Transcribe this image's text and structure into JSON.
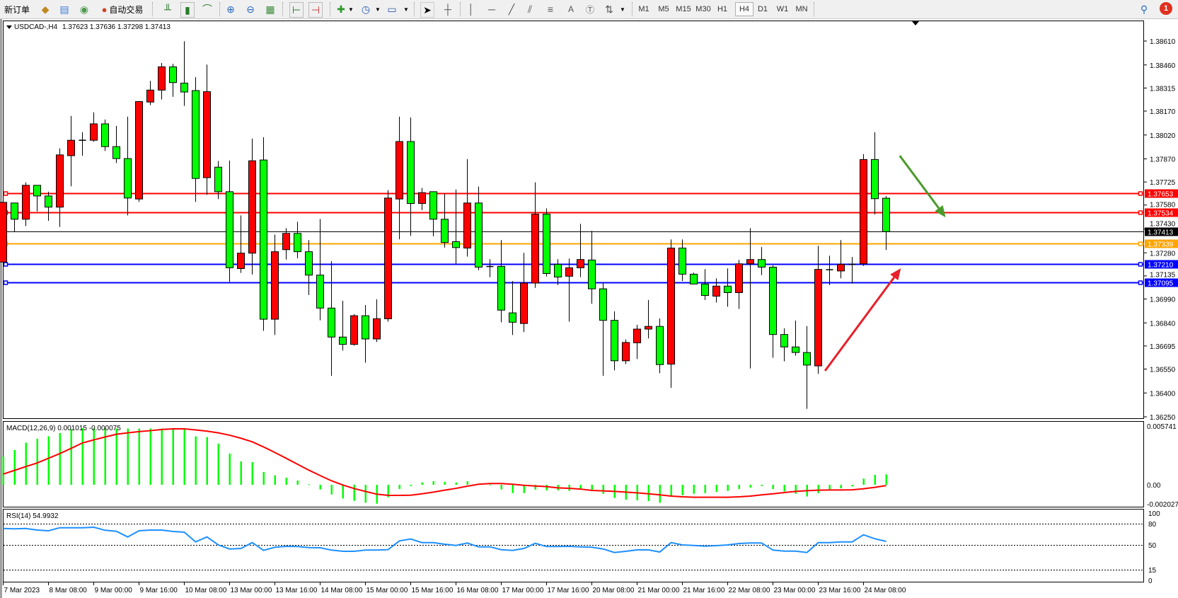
{
  "toolbar": {
    "new_order": "新订单",
    "auto_trading": "自动交易",
    "timeframes": [
      "M1",
      "M5",
      "M15",
      "M30",
      "H1",
      "H4",
      "D1",
      "W1",
      "MN"
    ],
    "active_timeframe": "H4",
    "notification_count": "1"
  },
  "chart": {
    "symbol": "USDCAD-,H4",
    "ohlc": "1.37623 1.37636 1.37298 1.37413"
  },
  "indicators": {
    "macd_label": "MACD(12,26,9) 0.001015 -0.000075",
    "rsi_label": "RSI(14) 54.9932"
  },
  "chart_data": {
    "type": "candlestick",
    "colors": {
      "bull": "#FF0000",
      "bear": "#00FF00",
      "macd_hist": "#00FF00",
      "macd_signal": "#FF0000",
      "rsi": "#1E90FF"
    },
    "x_labels": [
      "7 Mar 2023",
      "8 Mar 08:00",
      "9 Mar 00:00",
      "9 Mar 16:00",
      "10 Mar 08:00",
      "13 Mar 00:00",
      "13 Mar 16:00",
      "14 Mar 08:00",
      "15 Mar 00:00",
      "15 Mar 16:00",
      "16 Mar 08:00",
      "17 Mar 00:00",
      "17 Mar 16:00",
      "20 Mar 08:00",
      "21 Mar 00:00",
      "21 Mar 16:00",
      "22 Mar 08:00",
      "23 Mar 00:00",
      "23 Mar 16:00",
      "24 Mar 08:00"
    ],
    "price_ticks": [
      "1.38610",
      "1.38460",
      "1.38315",
      "1.38170",
      "1.38020",
      "1.37870",
      "1.37725",
      "1.37580",
      "1.37430",
      "1.37280",
      "1.37135",
      "1.36990",
      "1.36840",
      "1.36695",
      "1.36550",
      "1.36400",
      "1.36250"
    ],
    "levels": [
      {
        "price": 1.37653,
        "label": "1.37653",
        "color": "#FF0000"
      },
      {
        "price": 1.37534,
        "label": "1.37534",
        "color": "#FF0000"
      },
      {
        "price": 1.37339,
        "label": "1.37339",
        "color": "#FFA500"
      },
      {
        "price": 1.3721,
        "label": "1.37210",
        "color": "#0000FF"
      },
      {
        "price": 1.37095,
        "label": "1.37095",
        "color": "#0000FF"
      }
    ],
    "bid": {
      "price": 1.37413,
      "label": "1.37413",
      "color": "#000000"
    },
    "candles_ohlc": [
      [
        1.37222,
        1.37604,
        1.37127,
        1.37597
      ],
      [
        1.37593,
        1.37593,
        1.37413,
        1.37491
      ],
      [
        1.37491,
        1.37723,
        1.37448,
        1.37704
      ],
      [
        1.37704,
        1.37704,
        1.3754,
        1.37637
      ],
      [
        1.37637,
        1.37664,
        1.37481,
        1.37567
      ],
      [
        1.37567,
        1.37936,
        1.37442,
        1.37895
      ],
      [
        1.3789,
        1.3814,
        1.37698,
        1.37987
      ],
      [
        1.37987,
        1.38038,
        1.3789,
        1.37987
      ],
      [
        1.37987,
        1.38162,
        1.37977,
        1.3809
      ],
      [
        1.3809,
        1.38117,
        1.3792,
        1.37947
      ],
      [
        1.37947,
        1.38077,
        1.37844,
        1.37872
      ],
      [
        1.37872,
        1.38135,
        1.37515,
        1.37624
      ],
      [
        1.37618,
        1.3823,
        1.376,
        1.3823
      ],
      [
        1.38227,
        1.3836,
        1.38208,
        1.38302
      ],
      [
        1.38302,
        1.38472,
        1.38243,
        1.38448
      ],
      [
        1.38448,
        1.38467,
        1.3826,
        1.38349
      ],
      [
        1.38346,
        1.38609,
        1.38203,
        1.3829
      ],
      [
        1.38299,
        1.38383,
        1.376,
        1.37747
      ],
      [
        1.37752,
        1.38462,
        1.37645,
        1.38292
      ],
      [
        1.37818,
        1.37857,
        1.37618,
        1.37664
      ],
      [
        1.37664,
        1.3786,
        1.37098,
        1.37186
      ],
      [
        1.37181,
        1.37515,
        1.37154,
        1.37278
      ],
      [
        1.37278,
        1.37998,
        1.37144,
        1.37858
      ],
      [
        1.37863,
        1.38006,
        1.3679,
        1.36863
      ],
      [
        1.36863,
        1.37395,
        1.36764,
        1.37287
      ],
      [
        1.373,
        1.37435,
        1.37238,
        1.37402
      ],
      [
        1.37402,
        1.37475,
        1.37246,
        1.37287
      ],
      [
        1.37287,
        1.3736,
        1.37015,
        1.3714
      ],
      [
        1.3714,
        1.37492,
        1.36856,
        1.36933
      ],
      [
        1.36933,
        1.37227,
        1.36507,
        1.36751
      ],
      [
        1.36751,
        1.36979,
        1.36666,
        1.36705
      ],
      [
        1.36705,
        1.36895,
        1.36697,
        1.36885
      ],
      [
        1.36885,
        1.36952,
        1.3659,
        1.36739
      ],
      [
        1.36739,
        1.36988,
        1.3672,
        1.36866
      ],
      [
        1.36866,
        1.37674,
        1.36848,
        1.37624
      ],
      [
        1.37618,
        1.38135,
        1.37365,
        1.37979
      ],
      [
        1.37979,
        1.3813,
        1.37386,
        1.3759
      ],
      [
        1.3759,
        1.37688,
        1.37548,
        1.37658
      ],
      [
        1.37664,
        1.37664,
        1.37384,
        1.37491
      ],
      [
        1.37491,
        1.37651,
        1.37313,
        1.37345
      ],
      [
        1.3735,
        1.37678,
        1.37211,
        1.37313
      ],
      [
        1.3731,
        1.37869,
        1.37256,
        1.37593
      ],
      [
        1.37593,
        1.37696,
        1.37171,
        1.3719
      ],
      [
        1.37194,
        1.3724,
        1.37127,
        1.37194
      ],
      [
        1.37195,
        1.3736,
        1.36844,
        1.3692
      ],
      [
        1.36903,
        1.37103,
        1.36764,
        1.36844
      ],
      [
        1.36836,
        1.3728,
        1.36782,
        1.3709
      ],
      [
        1.3709,
        1.37723,
        1.3706,
        1.37523
      ],
      [
        1.37523,
        1.37559,
        1.37131,
        1.3715
      ],
      [
        1.37208,
        1.3724,
        1.37077,
        1.37128
      ],
      [
        1.37133,
        1.37244,
        1.36848,
        1.37186
      ],
      [
        1.37186,
        1.37462,
        1.37127,
        1.37238
      ],
      [
        1.37235,
        1.37418,
        1.3696,
        1.37054
      ],
      [
        1.37054,
        1.3709,
        1.36507,
        1.36856
      ],
      [
        1.36856,
        1.36912,
        1.36542,
        1.36602
      ],
      [
        1.36602,
        1.36736,
        1.36581,
        1.36717
      ],
      [
        1.36715,
        1.36828,
        1.36613,
        1.36801
      ],
      [
        1.36801,
        1.36984,
        1.36742,
        1.36818
      ],
      [
        1.36818,
        1.36868,
        1.36524,
        1.36578
      ],
      [
        1.36581,
        1.37364,
        1.36432,
        1.3731
      ],
      [
        1.3731,
        1.37364,
        1.37103,
        1.37146
      ],
      [
        1.37146,
        1.37155,
        1.37084,
        1.37084
      ],
      [
        1.37084,
        1.37178,
        1.36984,
        1.37012
      ],
      [
        1.37008,
        1.3712,
        1.36968,
        1.37071
      ],
      [
        1.37071,
        1.37182,
        1.36941,
        1.3703
      ],
      [
        1.3703,
        1.37236,
        1.36928,
        1.37211
      ],
      [
        1.37211,
        1.37435,
        1.36554,
        1.37238
      ],
      [
        1.37238,
        1.37316,
        1.3714,
        1.3719
      ],
      [
        1.3719,
        1.37201,
        1.36621,
        1.36767
      ],
      [
        1.36767,
        1.36806,
        1.36599,
        1.36689
      ],
      [
        1.36689,
        1.36855,
        1.36634,
        1.36654
      ],
      [
        1.36654,
        1.3682,
        1.363,
        1.36575
      ],
      [
        1.3657,
        1.37324,
        1.3652,
        1.37176
      ],
      [
        1.37174,
        1.37262,
        1.37077,
        1.37174
      ],
      [
        1.37166,
        1.3736,
        1.3712,
        1.37208
      ],
      [
        1.37208,
        1.37254,
        1.37087,
        1.37208
      ],
      [
        1.37211,
        1.379,
        1.37198,
        1.37866
      ],
      [
        1.37866,
        1.38038,
        1.37521,
        1.3762
      ],
      [
        1.37623,
        1.37636,
        1.37298,
        1.37413
      ]
    ],
    "annotations": [
      {
        "type": "arrow",
        "color": "#4A9A2A",
        "from": [
          79.2,
          1.3789
        ],
        "to": [
          83.25,
          1.37503
        ]
      },
      {
        "type": "arrow",
        "color": "#E8202A",
        "from": [
          72.6,
          1.36539
        ],
        "to": [
          79.3,
          1.37183
        ]
      }
    ],
    "macd": {
      "ticks": [
        {
          "v": 0.005741,
          "label": "0.005741"
        },
        {
          "v": 0,
          "label": "0.00"
        },
        {
          "v": -0.002027,
          "label": "-0.002027"
        }
      ],
      "histogram": [
        0.00277,
        0.0034,
        0.00411,
        0.0045,
        0.00474,
        0.00506,
        0.00547,
        0.00554,
        0.00554,
        0.00554,
        0.0055,
        0.0055,
        0.0055,
        0.0055,
        0.0055,
        0.0055,
        0.0055,
        0.00474,
        0.00467,
        0.00402,
        0.00305,
        0.00229,
        0.00222,
        0.00125,
        0.00092,
        0.00069,
        0.00042,
        5e-05,
        -0.00046,
        -0.00095,
        -0.00134,
        -0.00157,
        -0.00176,
        -0.00185,
        -0.00122,
        -0.00042,
        -0.00012,
        0.00023,
        0.00035,
        0.00028,
        0.00023,
        0.00035,
        0.00012,
        2e-05,
        -0.00046,
        -0.00081,
        -0.00081,
        -0.00048,
        -0.00055,
        -0.00055,
        -0.0006,
        -0.00046,
        -0.00053,
        -0.00088,
        -0.00129,
        -0.00146,
        -0.00152,
        -0.00159,
        -0.00176,
        -0.0011,
        -0.00102,
        -0.00088,
        -0.00081,
        -0.00069,
        -0.0006,
        -0.00042,
        -0.00028,
        -0.00012,
        -0.00042,
        -0.00065,
        -0.00088,
        -0.00115,
        -0.00083,
        -0.00051,
        -0.00035,
        -0.00016,
        0.0006,
        0.00097,
        0.001015
      ],
      "signal": [
        0.00104,
        0.00141,
        0.00178,
        0.00213,
        0.00259,
        0.00305,
        0.00356,
        0.00409,
        0.00439,
        0.00467,
        0.00494,
        0.00508,
        0.0052,
        0.00529,
        0.00541,
        0.00547,
        0.00547,
        0.00536,
        0.00524,
        0.00508,
        0.00485,
        0.00455,
        0.0042,
        0.0037,
        0.00316,
        0.00259,
        0.00201,
        0.00143,
        0.0009,
        0.00039,
        -2e-05,
        -0.00037,
        -0.00065,
        -0.00092,
        -0.00104,
        -0.00104,
        -0.00102,
        -0.00088,
        -0.00072,
        -0.00053,
        -0.00035,
        -0.00014,
        5e-05,
        0.00012,
        0.00012,
        5e-05,
        -5e-05,
        -0.00012,
        -0.00018,
        -0.0003,
        -0.00035,
        -0.00042,
        -0.00055,
        -0.0006,
        -0.00065,
        -0.00072,
        -0.00079,
        -0.00088,
        -0.00099,
        -0.00111,
        -0.00118,
        -0.00122,
        -0.00122,
        -0.00122,
        -0.00122,
        -0.00118,
        -0.00111,
        -0.00099,
        -0.00088,
        -0.00076,
        -0.00065,
        -0.00058,
        -0.00053,
        -0.00051,
        -0.00051,
        -0.00049,
        -0.00039,
        -0.00025,
        -7.5e-05
      ]
    },
    "rsi": {
      "ticks": [
        100,
        80,
        50,
        15,
        0
      ],
      "levels": [
        80,
        50,
        15
      ],
      "values": [
        73.3,
        72.7,
        73.3,
        71,
        70,
        74.3,
        74.3,
        74.3,
        75,
        70.7,
        69.3,
        61.3,
        70,
        71,
        71,
        69,
        68,
        54.3,
        61.3,
        50,
        44.3,
        45,
        53.3,
        42.3,
        46.7,
        48,
        47.7,
        46.3,
        46,
        42.7,
        41,
        41,
        42.7,
        42.7,
        43.3,
        55.7,
        58.3,
        53.3,
        53.3,
        51,
        49.3,
        52.7,
        47.3,
        47.3,
        43.3,
        42.3,
        45,
        52.3,
        47.7,
        47.7,
        48,
        47.3,
        46.7,
        44.3,
        39.3,
        41,
        43,
        43,
        40,
        53.3,
        50,
        49.3,
        48.3,
        49,
        50,
        52,
        52.7,
        52.7,
        42.7,
        41.3,
        41.3,
        39.3,
        53.3,
        53.3,
        54.3,
        54.3,
        64.3,
        58.7,
        55
      ]
    }
  }
}
